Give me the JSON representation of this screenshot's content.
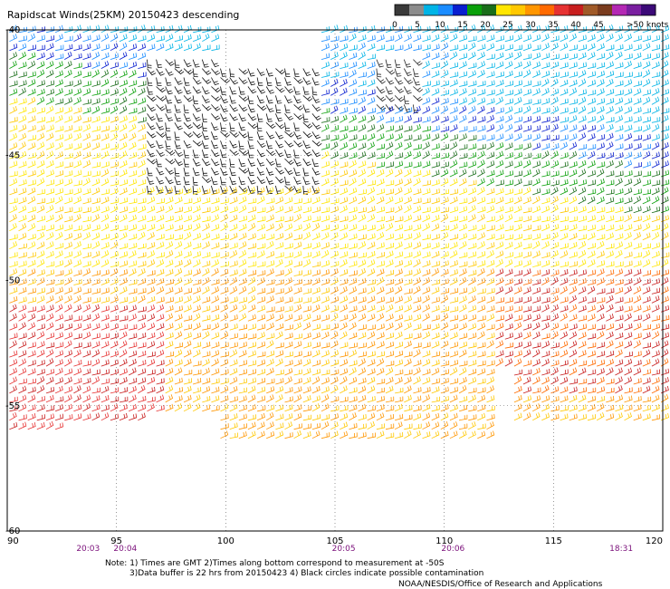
{
  "chart_data": {
    "type": "scatter",
    "subtype": "wind-barb-map",
    "title": "Rapidscat Winds(25KM) 20150423 descending",
    "x_ticks": [
      "90",
      "95",
      "100",
      "105",
      "110",
      "115",
      "120"
    ],
    "y_ticks": [
      "-40",
      "-45",
      "-50",
      "-55",
      "-60"
    ],
    "xlim": [
      90,
      120
    ],
    "ylim": [
      -60,
      -40
    ],
    "grid": "dotted",
    "colorbar": {
      "labels": [
        "0",
        "5",
        "10",
        "15",
        "20",
        "25",
        "30",
        "35",
        "40",
        "45",
        ">50 knots"
      ],
      "colors": [
        "#3a3a3a",
        "#8c8c8c",
        "#00b4e6",
        "#1a8cff",
        "#0a1fd0",
        "#0aa00a",
        "#1a6e1a",
        "#ffe600",
        "#ffc800",
        "#ff9600",
        "#ff6a00",
        "#e63232",
        "#c81e1e",
        "#a05a28",
        "#7a3c1e",
        "#b428b4",
        "#7a1fa0",
        "#3c0a78"
      ]
    },
    "time_labels": [
      {
        "label": "20:03",
        "lon": 93.7
      },
      {
        "label": "20:04",
        "lon": 95.4
      },
      {
        "label": "20:05",
        "lon": 105.4
      },
      {
        "label": "20:06",
        "lon": 110.4
      },
      {
        "label": "18:31",
        "lon": 118.1
      }
    ],
    "notes": [
      "Note: 1) Times are GMT 2)Times along bottom correspond to measurement at -50S",
      "3)Data buffer is 22 hrs from 20150423 4) Black circles indicate possible contamination"
    ],
    "credit": "NOAA/NESDIS/Office of Research and Applications"
  }
}
